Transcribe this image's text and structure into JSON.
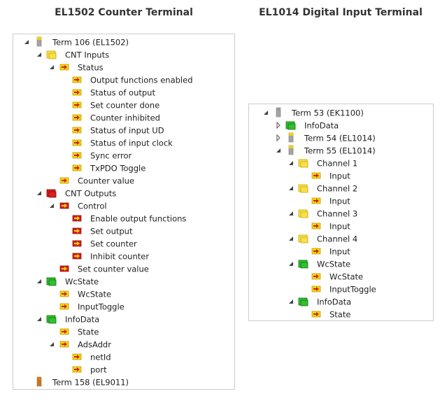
{
  "left": {
    "title": "EL1502 Counter Terminal",
    "nodes": [
      "Term 106 (EL1502)",
      "CNT Inputs",
      "Status",
      "Output functions enabled",
      "Status of output",
      "Set counter done",
      "Counter inhibited",
      "Status of input UD",
      "Status of input clock",
      "Sync error",
      "TxPDO Toggle",
      "Counter value",
      "CNT Outputs",
      "Control",
      "Enable output functions",
      "Set output",
      "Set counter",
      "Inhibit counter",
      "Set counter value",
      "WcState",
      "WcState",
      "InputToggle",
      "InfoData",
      "State",
      "AdsAddr",
      "netId",
      "port",
      "Term 158 (EL9011)"
    ]
  },
  "right": {
    "title": "EL1014 Digital Input Terminal",
    "nodes": [
      "Term 53 (EK1100)",
      "InfoData",
      "Term 54 (EL1014)",
      "Term 55 (EL1014)",
      "Channel 1",
      "Input",
      "Channel 2",
      "Input",
      "Channel 3",
      "Input",
      "Channel 4",
      "Input",
      "WcState",
      "WcState",
      "InputToggle",
      "InfoData",
      "State"
    ]
  }
}
